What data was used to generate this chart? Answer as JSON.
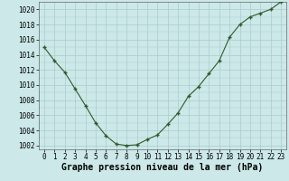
{
  "x": [
    0,
    1,
    2,
    3,
    4,
    5,
    6,
    7,
    8,
    9,
    10,
    11,
    12,
    13,
    14,
    15,
    16,
    17,
    18,
    19,
    20,
    21,
    22,
    23
  ],
  "y": [
    1015.0,
    1013.2,
    1011.7,
    1009.5,
    1007.3,
    1005.0,
    1003.3,
    1002.2,
    1002.0,
    1002.1,
    1002.8,
    1003.4,
    1004.8,
    1006.3,
    1008.5,
    1009.8,
    1011.5,
    1013.2,
    1016.3,
    1018.0,
    1019.0,
    1019.5,
    1020.0,
    1021.0
  ],
  "line_color": "#2d5a2d",
  "marker": "+",
  "bg_color": "#cce8e8",
  "grid_color": "#aacccc",
  "xlabel": "Graphe pression niveau de la mer (hPa)",
  "xlabel_fontsize": 7,
  "ylim": [
    1001.5,
    1021.0
  ],
  "xlim": [
    -0.5,
    23.5
  ],
  "yticks": [
    1002,
    1004,
    1006,
    1008,
    1010,
    1012,
    1014,
    1016,
    1018,
    1020
  ],
  "xticks": [
    0,
    1,
    2,
    3,
    4,
    5,
    6,
    7,
    8,
    9,
    10,
    11,
    12,
    13,
    14,
    15,
    16,
    17,
    18,
    19,
    20,
    21,
    22,
    23
  ],
  "tick_fontsize": 5.5,
  "ytick_fontsize": 5.5
}
